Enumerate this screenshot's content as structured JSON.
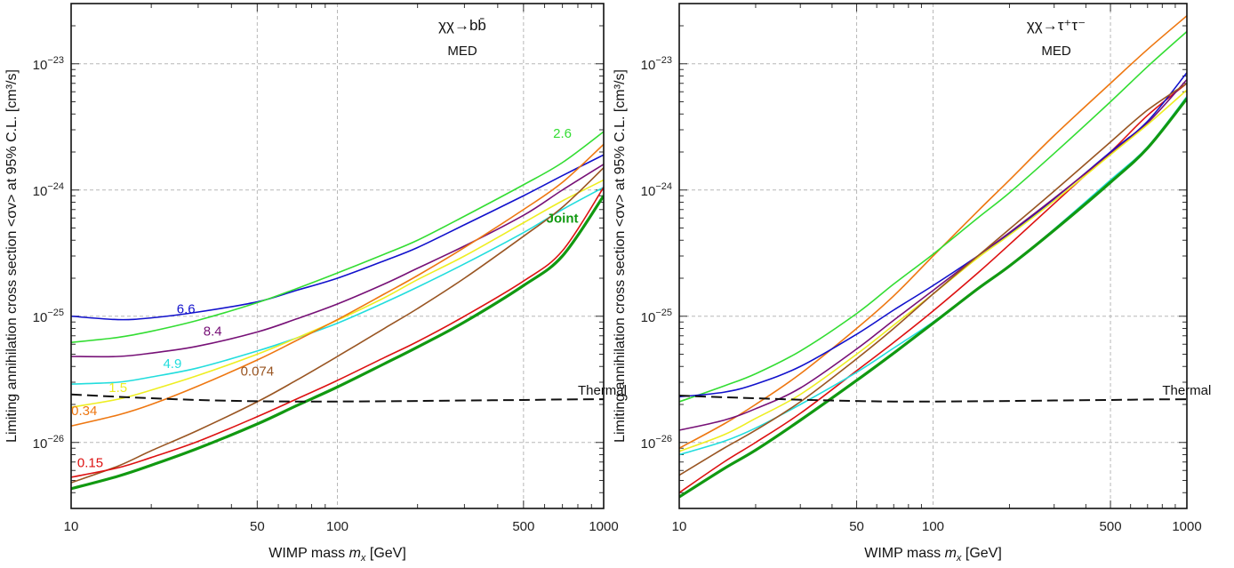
{
  "chart_data": [
    {
      "type": "line",
      "panel": "left",
      "title": "χχ→bb̄",
      "subtitle": "MED",
      "xlabel": "WIMP mass m_x [GeV]",
      "ylabel": "Limiting annihilation cross section <σv> at 95% C.L. [cm³/s]",
      "x_scale": "log",
      "y_scale": "log",
      "xlim": [
        10,
        1000
      ],
      "ylim": [
        3e-27,
        3e-23
      ],
      "x_ticks": [
        10,
        50,
        100,
        500,
        1000
      ],
      "x_tick_labels": [
        "10",
        "50",
        "100",
        "500",
        "1000"
      ],
      "y_ticks": [
        1e-26,
        1e-25,
        1e-24,
        1e-23
      ],
      "y_tick_labels": [
        "10−26",
        "10−25",
        "10−24",
        "10−23"
      ],
      "grid": true,
      "x": [
        10,
        15,
        20,
        30,
        50,
        70,
        100,
        150,
        200,
        300,
        500,
        700,
        1000
      ],
      "series": [
        {
          "name": "6.6",
          "color": "#1111cc",
          "width": 1.6,
          "values": [
            1e-25,
            9.4e-26,
            9.7e-26,
            1.08e-25,
            1.3e-25,
            1.6e-25,
            2e-25,
            2.75e-25,
            3.5e-25,
            5.3e-25,
            9e-25,
            1.3e-24,
            1.9e-24
          ]
        },
        {
          "name": "2.6",
          "color": "#33dd33",
          "width": 1.6,
          "values": [
            6.2e-26,
            6.8e-26,
            7.6e-26,
            9.3e-26,
            1.28e-25,
            1.65e-25,
            2.2e-25,
            3.1e-25,
            4e-25,
            6.2e-25,
            1.1e-24,
            1.65e-24,
            2.9e-24
          ]
        },
        {
          "name": "8.4",
          "color": "#771177",
          "width": 1.6,
          "values": [
            4.8e-26,
            4.8e-26,
            5.1e-26,
            5.8e-26,
            7.5e-26,
            9.5e-26,
            1.25e-25,
            1.8e-25,
            2.4e-25,
            3.6e-25,
            6.3e-25,
            1e-24,
            1.6e-24
          ]
        },
        {
          "name": "4.9",
          "color": "#22dddd",
          "width": 1.6,
          "values": [
            2.9e-26,
            3e-26,
            3.3e-26,
            3.9e-26,
            5.3e-26,
            6.7e-26,
            8.8e-26,
            1.28e-25,
            1.7e-25,
            2.6e-25,
            4.6e-25,
            7e-25,
            1.05e-24
          ]
        },
        {
          "name": "1.5",
          "color": "#eeee22",
          "width": 1.6,
          "values": [
            1.9e-26,
            2.2e-26,
            2.6e-26,
            3.4e-26,
            5e-26,
            6.7e-26,
            9.3e-26,
            1.4e-25,
            1.95e-25,
            3e-25,
            5.5e-25,
            8.2e-25,
            1.2e-24
          ]
        },
        {
          "name": "0.34",
          "color": "#ee7711",
          "width": 1.6,
          "values": [
            1.35e-26,
            1.65e-26,
            2e-26,
            2.8e-26,
            4.5e-26,
            6.4e-26,
            9.4e-26,
            1.5e-25,
            2.1e-25,
            3.5e-25,
            7e-25,
            1.15e-24,
            2.3e-24
          ]
        },
        {
          "name": "0.074",
          "color": "#995522",
          "width": 1.6,
          "values": [
            4.8e-27,
            6.5e-27,
            8.6e-27,
            1.25e-26,
            2.1e-26,
            3.1e-26,
            4.8e-26,
            8e-26,
            1.15e-25,
            2e-25,
            4.3e-25,
            7.3e-25,
            1.5e-24
          ]
        },
        {
          "name": "0.15",
          "color": "#dd1111",
          "width": 1.6,
          "values": [
            5.3e-27,
            6.3e-27,
            7.6e-27,
            1.02e-26,
            1.6e-26,
            2.2e-26,
            3.1e-26,
            4.7e-26,
            6.3e-26,
            1e-25,
            1.9e-25,
            3.3e-25,
            1.05e-24
          ]
        },
        {
          "name": "Joint",
          "color": "#119911",
          "width": 3.2,
          "values": [
            4.3e-27,
            5.4e-27,
            6.6e-27,
            9e-27,
            1.4e-26,
            1.95e-26,
            2.75e-26,
            4.2e-26,
            5.7e-26,
            9e-26,
            1.75e-25,
            3e-25,
            9e-25
          ]
        },
        {
          "name": "Thermal",
          "color": "#111111",
          "width": 2.0,
          "dashed": true,
          "values": [
            2.4e-26,
            2.3e-26,
            2.24e-26,
            2.17e-26,
            2.12e-26,
            2.11e-26,
            2.11e-26,
            2.12e-26,
            2.13e-26,
            2.15e-26,
            2.17e-26,
            2.19e-26,
            2.2e-26
          ]
        }
      ],
      "labels": [
        {
          "text": "6.6",
          "color": "#1111cc",
          "x": 27,
          "y": 1.05e-25
        },
        {
          "text": "2.6",
          "color": "#33dd33",
          "x": 700,
          "y": 2.6e-24
        },
        {
          "text": "8.4",
          "color": "#771177",
          "x": 34,
          "y": 7e-26
        },
        {
          "text": "4.9",
          "color": "#22dddd",
          "x": 24,
          "y": 3.9e-26
        },
        {
          "text": "1.5",
          "color": "#eeee22",
          "x": 15,
          "y": 2.5e-26
        },
        {
          "text": "0.34",
          "color": "#ee7711",
          "x": 11.2,
          "y": 1.65e-26
        },
        {
          "text": "0.074",
          "color": "#995522",
          "x": 50,
          "y": 3.4e-26
        },
        {
          "text": "0.15",
          "color": "#dd1111",
          "x": 11.8,
          "y": 6.4e-27
        },
        {
          "text": "Joint",
          "color": "#119911",
          "x": 700,
          "y": 5.5e-25,
          "bold": true
        },
        {
          "text": "Thermal",
          "color": "#111111",
          "x": 800,
          "y": 2.4e-26,
          "small": true
        }
      ]
    },
    {
      "type": "line",
      "panel": "right",
      "title": "χχ→τ⁺τ⁻",
      "subtitle": "MED",
      "xlabel": "WIMP mass m_x [GeV]",
      "ylabel": "Limiting annihilation cross section <σv> at 95% C.L. [cm³/s]",
      "x_scale": "log",
      "y_scale": "log",
      "xlim": [
        10,
        1000
      ],
      "ylim": [
        3e-27,
        3e-23
      ],
      "x_ticks": [
        10,
        50,
        100,
        500,
        1000
      ],
      "x_tick_labels": [
        "10",
        "50",
        "100",
        "500",
        "1000"
      ],
      "y_ticks": [
        1e-26,
        1e-25,
        1e-24,
        1e-23
      ],
      "y_tick_labels": [
        "10−26",
        "10−25",
        "10−24",
        "10−23"
      ],
      "grid": true,
      "x": [
        10,
        15,
        20,
        30,
        50,
        70,
        100,
        150,
        200,
        300,
        500,
        700,
        1000
      ],
      "series": [
        {
          "name": "orange",
          "color": "#ee7711",
          "width": 1.6,
          "values": [
            9e-27,
            1.4e-26,
            2e-26,
            3.5e-26,
            8e-26,
            1.45e-25,
            3e-25,
            6.8e-25,
            1.2e-24,
            2.7e-24,
            7e-24,
            1.3e-23,
            2.4e-23
          ]
        },
        {
          "name": "green",
          "color": "#33dd33",
          "width": 1.6,
          "values": [
            2.1e-26,
            2.8e-26,
            3.5e-26,
            5.3e-26,
            1.05e-25,
            1.8e-25,
            3.1e-25,
            6e-25,
            9.5e-25,
            1.95e-24,
            5e-24,
            9.5e-24,
            1.8e-23
          ]
        },
        {
          "name": "red",
          "color": "#dd1111",
          "width": 1.6,
          "values": [
            4e-27,
            7e-27,
            1e-26,
            1.7e-26,
            3.7e-26,
            6.2e-26,
            1.1e-25,
            2.2e-25,
            3.7e-25,
            7.8e-25,
            2e-24,
            3.9e-24,
            7e-24
          ]
        },
        {
          "name": "blue",
          "color": "#1111cc",
          "width": 1.6,
          "values": [
            2.3e-26,
            2.5e-26,
            2.9e-26,
            4e-26,
            7.2e-26,
            1.12e-25,
            1.75e-25,
            3e-25,
            4.5e-25,
            8.5e-25,
            2e-24,
            3.5e-24,
            8.5e-24
          ]
        },
        {
          "name": "purple",
          "color": "#771177",
          "width": 1.6,
          "values": [
            1.25e-26,
            1.5e-26,
            1.85e-26,
            2.7e-26,
            5.5e-26,
            9.3e-26,
            1.6e-25,
            3e-25,
            4.6e-25,
            8.6e-25,
            1.95e-24,
            3.4e-24,
            7.5e-24
          ]
        },
        {
          "name": "yellow",
          "color": "#eeee22",
          "width": 1.6,
          "values": [
            8.5e-27,
            1.15e-26,
            1.55e-26,
            2.4e-26,
            5e-26,
            8.5e-26,
            1.5e-25,
            2.9e-25,
            4.4e-25,
            8.2e-25,
            1.9e-24,
            3.3e-24,
            6.2e-24
          ]
        },
        {
          "name": "cyan",
          "color": "#22dddd",
          "width": 1.6,
          "values": [
            8e-27,
            1.02e-26,
            1.3e-26,
            2e-26,
            3.6e-26,
            5.6e-26,
            9e-26,
            1.65e-25,
            2.5e-25,
            4.9e-25,
            1.2e-24,
            2.2e-24,
            5.5e-24
          ]
        },
        {
          "name": "brown",
          "color": "#995522",
          "width": 1.6,
          "values": [
            5.5e-27,
            9e-27,
            1.25e-26,
            2.1e-26,
            4.6e-26,
            8e-26,
            1.5e-25,
            3e-25,
            4.9e-25,
            9.8e-25,
            2.4e-24,
            4.3e-24,
            7e-24
          ]
        },
        {
          "name": "joint",
          "color": "#119911",
          "width": 3.2,
          "values": [
            3.7e-27,
            6.2e-27,
            8.7e-27,
            1.5e-26,
            3.1e-26,
            5.1e-26,
            8.8e-26,
            1.65e-25,
            2.5e-25,
            4.8e-25,
            1.15e-24,
            2.15e-24,
            5.3e-24
          ]
        },
        {
          "name": "Thermal",
          "color": "#111111",
          "width": 2.0,
          "dashed": true,
          "values": [
            2.35e-26,
            2.28e-26,
            2.24e-26,
            2.18e-26,
            2.13e-26,
            2.11e-26,
            2.11e-26,
            2.12e-26,
            2.13e-26,
            2.15e-26,
            2.17e-26,
            2.19e-26,
            2.2e-26
          ]
        }
      ],
      "labels": [
        {
          "text": "Thermal",
          "color": "#111111",
          "x": 800,
          "y": 2.4e-26,
          "small": true
        }
      ]
    }
  ]
}
